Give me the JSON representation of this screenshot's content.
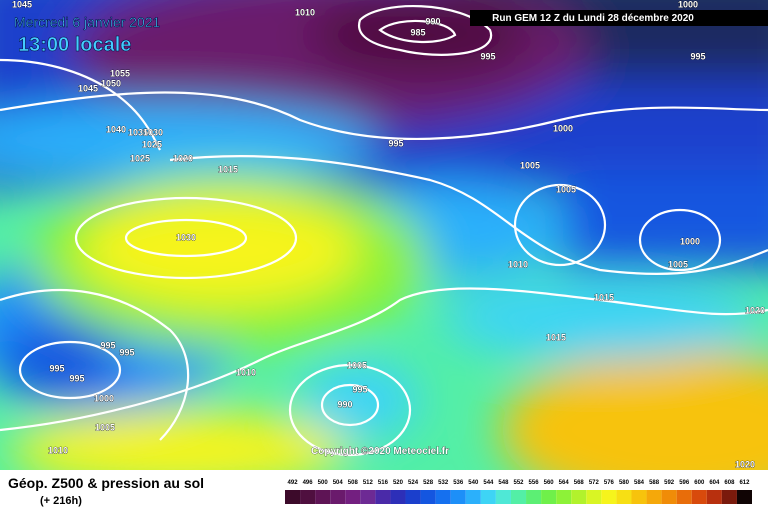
{
  "header": {
    "date": "Mercredi 6 janvier 2021",
    "time": "13:00 locale",
    "run": "Run GEM 12 Z du Lundi 28 décembre 2020"
  },
  "copyright": "Copyright ©2020 Meteociel.fr",
  "footer": {
    "title": "Géop. Z500 & pression au sol",
    "lead": "(+ 216h)"
  },
  "isobar_labels": [
    "1045",
    "1010",
    "990",
    "985",
    "995",
    "1000",
    "995",
    "1055",
    "1050",
    "1045",
    "1040",
    "1035",
    "1030",
    "1025",
    "1025",
    "1020",
    "1015",
    "995",
    "1000",
    "1005",
    "1005",
    "1030",
    "1000",
    "1005",
    "1010",
    "1015",
    "1015",
    "1020",
    "995",
    "995",
    "995",
    "995",
    "1000",
    "1010",
    "1005",
    "995",
    "990",
    "1005",
    "1010",
    "1020"
  ],
  "legend": {
    "labels": [
      "492",
      "496",
      "500",
      "504",
      "508",
      "512",
      "516",
      "520",
      "524",
      "528",
      "532",
      "536",
      "540",
      "544",
      "548",
      "552",
      "556",
      "560",
      "564",
      "568",
      "572",
      "576",
      "580",
      "584",
      "588",
      "592",
      "596",
      "600",
      "604",
      "608",
      "612"
    ],
    "colors": [
      "#3c0a2a",
      "#4f0f3f",
      "#5e1455",
      "#6a1a6c",
      "#731f80",
      "#6d2a94",
      "#4a2aa8",
      "#2d2fb8",
      "#1b3fcc",
      "#1456e0",
      "#1570ef",
      "#1d8ff8",
      "#2bb0fb",
      "#3ed4f5",
      "#4fe8d6",
      "#53efa6",
      "#5cef74",
      "#6ff04a",
      "#8df238",
      "#b2f22c",
      "#d9f524",
      "#f6f41c",
      "#f7df14",
      "#f7c30c",
      "#f5a80a",
      "#f08c08",
      "#e86d0a",
      "#d84a0c",
      "#b8300e",
      "#7a1a0c",
      "#100404"
    ]
  }
}
